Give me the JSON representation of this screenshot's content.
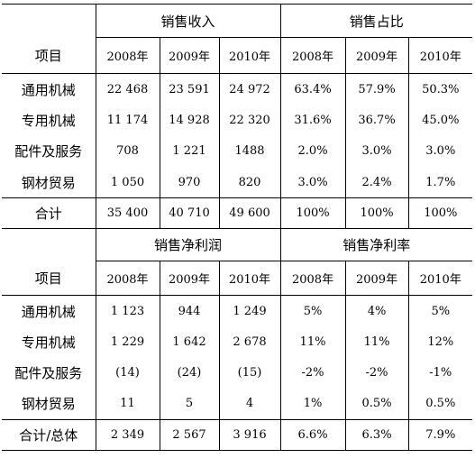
{
  "item_label": "项目",
  "section1": {
    "group1_title": "销售收入",
    "group2_title": "销售占比",
    "years1": [
      "2008年",
      "2009年",
      "2010年"
    ],
    "years2": [
      "2008年",
      "2009年",
      "2010年"
    ],
    "rows": [
      {
        "label": "通用机械",
        "c": [
          "22 468",
          "23 591",
          "24 972",
          "63.4%",
          "57.9%",
          "50.3%"
        ]
      },
      {
        "label": "专用机械",
        "c": [
          "11 174",
          "14 928",
          "22 320",
          "31.6%",
          "36.7%",
          "45.0%"
        ]
      },
      {
        "label": "配件及服务",
        "c": [
          "708",
          "1 221",
          "1488",
          "2.0%",
          "3.0%",
          "3.0%"
        ]
      },
      {
        "label": "钢材贸易",
        "c": [
          "1 050",
          "970",
          "820",
          "3.0%",
          "2.4%",
          "1.7%"
        ]
      }
    ],
    "total": {
      "label": "合计",
      "c": [
        "35 400",
        "40 710",
        "49 600",
        "100%",
        "100%",
        "100%"
      ]
    }
  },
  "section2": {
    "group1_title": "销售净利润",
    "group2_title": "销售净利率",
    "years1": [
      "2008年",
      "2009年",
      "2010年"
    ],
    "years2": [
      "2008年",
      "2009年",
      "2010年"
    ],
    "rows": [
      {
        "label": "通用机械",
        "c": [
          "1 123",
          "944",
          "1 249",
          "5%",
          "4%",
          "5%"
        ]
      },
      {
        "label": "专用机械",
        "c": [
          "1 229",
          "1 642",
          "2 678",
          "11%",
          "11%",
          "12%"
        ]
      },
      {
        "label": "配件及服务",
        "c": [
          "(14)",
          "(24)",
          "(15)",
          "-2%",
          "-2%",
          "-1%"
        ]
      },
      {
        "label": "钢材贸易",
        "c": [
          "11",
          "5",
          "4",
          "1%",
          "0.5%",
          "0.5%"
        ]
      }
    ],
    "total": {
      "label": "合计/总体",
      "c": [
        "2 349",
        "2 567",
        "3 916",
        "6.6%",
        "6.3%",
        "7.9%"
      ]
    }
  }
}
